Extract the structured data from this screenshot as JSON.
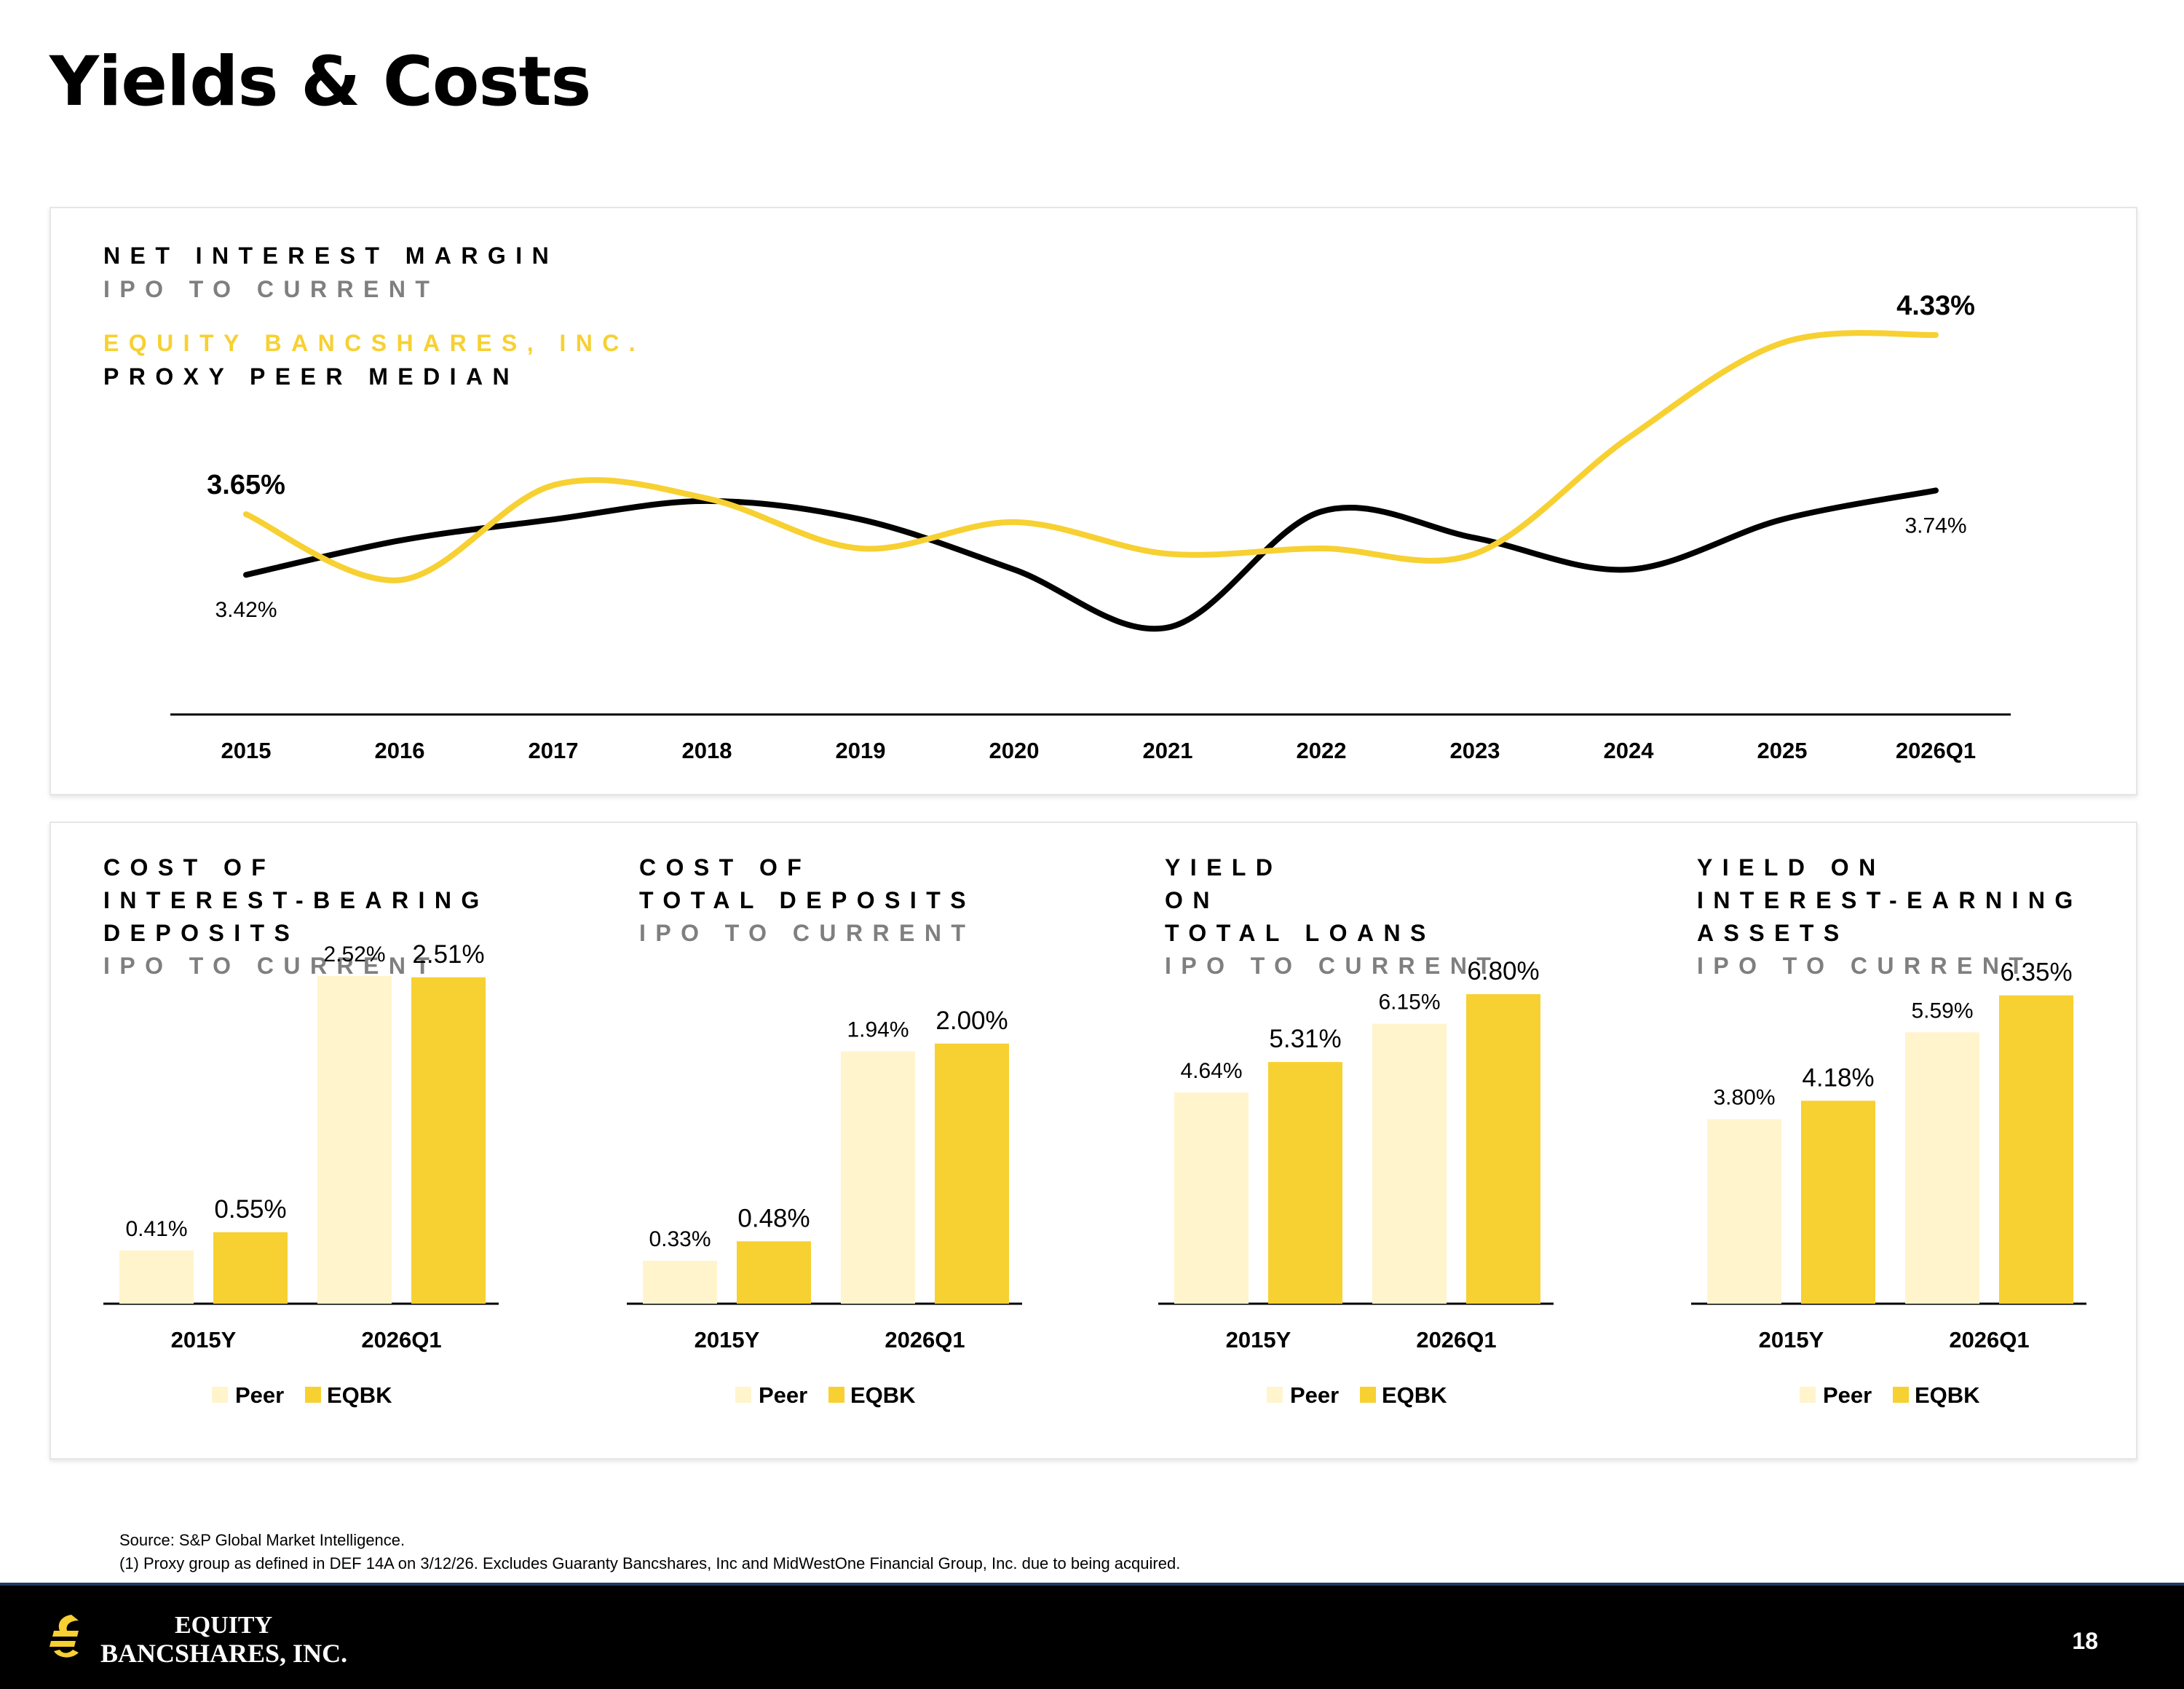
{
  "page": {
    "title": "Yields & Costs",
    "page_number": "18"
  },
  "nim": {
    "title": "NET INTEREST MARGIN",
    "subtitle": "IPO TO CURRENT",
    "legend_eqbk": "EQUITY BANCSHARES, INC.",
    "legend_peer": "PROXY PEER MEDIAN"
  },
  "panels": [
    {
      "title_lines": [
        "COST OF",
        "INTEREST-BEARING",
        "DEPOSITS"
      ],
      "subtitle": "IPO TO CURRENT"
    },
    {
      "title_lines": [
        "COST OF",
        "TOTAL DEPOSITS"
      ],
      "subtitle": "IPO TO CURRENT"
    },
    {
      "title_lines": [
        "YIELD",
        "ON",
        "TOTAL LOANS"
      ],
      "subtitle": "IPO TO CURRENT"
    },
    {
      "title_lines": [
        "YIELD ON",
        "INTEREST-EARNING",
        "ASSETS"
      ],
      "subtitle": "IPO TO CURRENT"
    }
  ],
  "footnotes": {
    "source": "Source: S&P Global Market Intelligence.",
    "note1": "(1) Proxy group as defined in DEF 14A on 3/12/26. Excludes Guaranty Bancshares, Inc and MidWestOne Financial Group, Inc. due to being acquired."
  },
  "logo": {
    "line1": "EQUITY",
    "line2": "BANCSHARES, INC.",
    "icon": "equity-logo-icon"
  },
  "colors": {
    "eqbk": "#f7d032",
    "peer_line": "#000000",
    "peer_bar": "#fff4cc",
    "axis": "#000000"
  },
  "chart_data": [
    {
      "type": "line",
      "x": [
        "2015",
        "2016",
        "2017",
        "2018",
        "2019",
        "2020",
        "2021",
        "2022",
        "2023",
        "2024",
        "2025",
        "2026Q1"
      ],
      "series": [
        {
          "name": "EQUITY BANCSHARES, INC.",
          "values": [
            3.65,
            3.4,
            3.76,
            3.71,
            3.52,
            3.62,
            3.5,
            3.52,
            3.5,
            3.94,
            4.3,
            4.33
          ]
        },
        {
          "name": "PROXY PEER MEDIAN",
          "values": [
            3.42,
            3.55,
            3.63,
            3.7,
            3.63,
            3.44,
            3.22,
            3.66,
            3.56,
            3.44,
            3.63,
            3.74
          ]
        }
      ],
      "data_labels": [
        {
          "series": 0,
          "index": 0,
          "text": "3.65%"
        },
        {
          "series": 1,
          "index": 0,
          "text": "3.42%"
        },
        {
          "series": 0,
          "index": 11,
          "text": "4.33%"
        },
        {
          "series": 1,
          "index": 11,
          "text": "3.74%"
        }
      ],
      "ylim": [
        2.6,
        4.7
      ],
      "grid": false,
      "legend": "top-left"
    },
    {
      "type": "bar",
      "categories": [
        "2015Y",
        "2026Q1"
      ],
      "series": [
        {
          "name": "Peer",
          "values": [
            0.41,
            2.52
          ]
        },
        {
          "name": "EQBK",
          "values": [
            0.55,
            2.51
          ]
        }
      ],
      "labels": [
        [
          "0.41%",
          "2.52%"
        ],
        [
          "0.55%",
          "2.51%"
        ]
      ],
      "ylim": [
        0,
        2.8
      ],
      "legend": "bottom"
    },
    {
      "type": "bar",
      "categories": [
        "2015Y",
        "2026Q1"
      ],
      "series": [
        {
          "name": "Peer",
          "values": [
            0.33,
            1.94
          ]
        },
        {
          "name": "EQBK",
          "values": [
            0.48,
            2.0
          ]
        }
      ],
      "labels": [
        [
          "0.33%",
          "1.94%"
        ],
        [
          "0.48%",
          "2.00%"
        ]
      ],
      "ylim": [
        0,
        2.8
      ],
      "legend": "bottom"
    },
    {
      "type": "bar",
      "categories": [
        "2015Y",
        "2026Q1"
      ],
      "series": [
        {
          "name": "Peer",
          "values": [
            4.64,
            6.15
          ]
        },
        {
          "name": "EQBK",
          "values": [
            5.31,
            6.8
          ]
        }
      ],
      "labels": [
        [
          "4.64%",
          "6.15%"
        ],
        [
          "5.31%",
          "6.80%"
        ]
      ],
      "ylim": [
        0,
        8.0
      ],
      "legend": "bottom"
    },
    {
      "type": "bar",
      "categories": [
        "2015Y",
        "2026Q1"
      ],
      "series": [
        {
          "name": "Peer",
          "values": [
            3.8,
            5.59
          ]
        },
        {
          "name": "EQBK",
          "values": [
            4.18,
            6.35
          ]
        }
      ],
      "labels": [
        [
          "3.80%",
          "5.59%"
        ],
        [
          "4.18%",
          "6.35%"
        ]
      ],
      "ylim": [
        0,
        7.5
      ],
      "legend": "bottom"
    }
  ]
}
